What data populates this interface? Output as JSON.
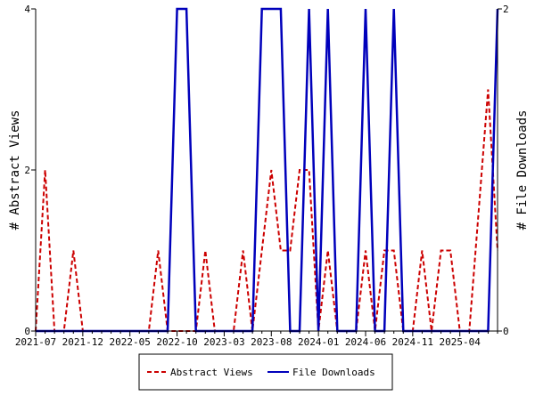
{
  "chart_data": {
    "type": "line",
    "x_start": "2021-07",
    "x_tick_labels": [
      "2021-07",
      "2021-12",
      "2022-05",
      "2022-10",
      "2023-03",
      "2023-08",
      "2024-01",
      "2024-06",
      "2024-11",
      "2025-04"
    ],
    "ylabel_left": "# Abstract Views",
    "ylabel_right": "# File Downloads",
    "ylim_left": [
      0,
      4
    ],
    "ylim_right": [
      0,
      2
    ],
    "y_ticks_left": [
      "0",
      "2",
      "4"
    ],
    "y_ticks_right": [
      "0",
      "2"
    ],
    "legend_position": "bottom-center",
    "series": [
      {
        "name": "Abstract Views",
        "axis": "left",
        "color": "#cc0000",
        "style": "dashed",
        "values": [
          0,
          2,
          0,
          0,
          1,
          0,
          0,
          0,
          0,
          0,
          0,
          0,
          0,
          1,
          0,
          0,
          0,
          0,
          1,
          0,
          0,
          0,
          1,
          0,
          1,
          2,
          1,
          1,
          2,
          2,
          0,
          1,
          0,
          0,
          0,
          1,
          0,
          1,
          1,
          0,
          0,
          1,
          0,
          1,
          1,
          0,
          0,
          1.5,
          3,
          1
        ]
      },
      {
        "name": "File Downloads",
        "axis": "right",
        "color": "#0000bb",
        "style": "solid",
        "values": [
          0,
          0,
          0,
          0,
          0,
          0,
          0,
          0,
          0,
          0,
          0,
          0,
          0,
          0,
          0,
          2,
          2,
          0,
          0,
          0,
          0,
          0,
          0,
          0,
          2,
          2,
          2,
          0,
          0,
          2,
          0,
          2,
          0,
          0,
          0,
          2,
          0,
          0,
          2,
          0,
          0,
          0,
          0,
          0,
          0,
          0,
          0,
          0,
          0,
          2
        ]
      }
    ]
  }
}
